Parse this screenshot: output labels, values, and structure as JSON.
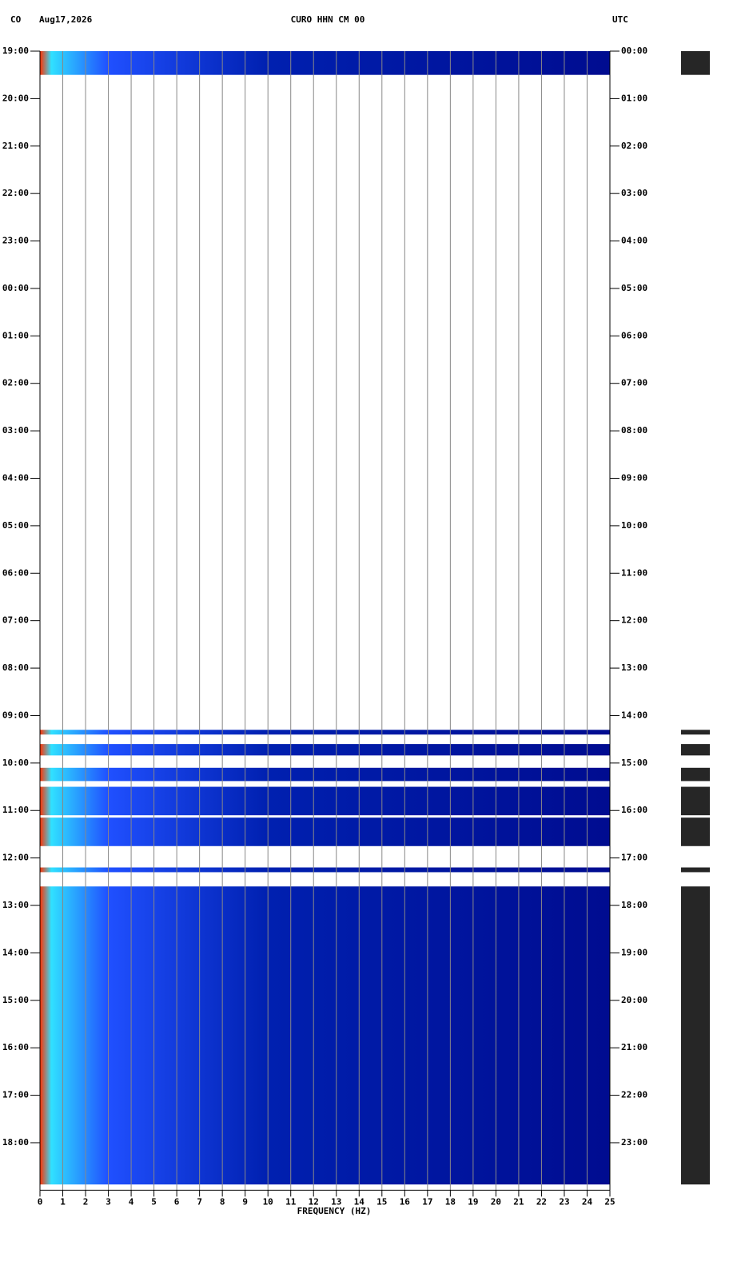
{
  "chart_data": {
    "type": "spectrogram",
    "network": "CO",
    "date": "Aug17,2026",
    "title": "CURO HHN CM 00",
    "timezone": "UTC",
    "xlabel": "FREQUENCY (HZ)",
    "xlim": [
      0,
      25
    ],
    "xticks": [
      0,
      1,
      2,
      3,
      4,
      5,
      6,
      7,
      8,
      9,
      10,
      11,
      12,
      13,
      14,
      15,
      16,
      17,
      18,
      19,
      20,
      21,
      22,
      23,
      24,
      25
    ],
    "ylim": [
      0,
      24
    ],
    "yticks": [
      {
        "value": 0,
        "label": "19:00"
      },
      {
        "value": 1,
        "label": "20:00"
      },
      {
        "value": 2,
        "label": "21:00"
      },
      {
        "value": 3,
        "label": "22:00"
      },
      {
        "value": 4,
        "label": "23:00"
      },
      {
        "value": 5,
        "label": "00:00"
      },
      {
        "value": 6,
        "label": "01:00"
      },
      {
        "value": 7,
        "label": "02:00"
      },
      {
        "value": 8,
        "label": "03:00"
      },
      {
        "value": 9,
        "label": "04:00"
      },
      {
        "value": 10,
        "label": "05:00"
      },
      {
        "value": 11,
        "label": "06:00"
      },
      {
        "value": 12,
        "label": "07:00"
      },
      {
        "value": 13,
        "label": "08:00"
      },
      {
        "value": 14,
        "label": "09:00"
      },
      {
        "value": 15,
        "label": "10:00"
      },
      {
        "value": 16,
        "label": "11:00"
      },
      {
        "value": 17,
        "label": "12:00"
      },
      {
        "value": 18,
        "label": "13:00"
      },
      {
        "value": 19,
        "label": "14:00"
      },
      {
        "value": 20,
        "label": "15:00"
      },
      {
        "value": 21,
        "label": "16:00"
      },
      {
        "value": 22,
        "label": "17:00"
      },
      {
        "value": 23,
        "label": "18:00"
      }
    ],
    "y2ticks": [
      {
        "value": 0,
        "label": "00:00"
      },
      {
        "value": 1,
        "label": "01:00"
      },
      {
        "value": 2,
        "label": "02:00"
      },
      {
        "value": 3,
        "label": "03:00"
      },
      {
        "value": 4,
        "label": "04:00"
      },
      {
        "value": 5,
        "label": "05:00"
      },
      {
        "value": 6,
        "label": "06:00"
      },
      {
        "value": 7,
        "label": "07:00"
      },
      {
        "value": 8,
        "label": "08:00"
      },
      {
        "value": 9,
        "label": "09:00"
      },
      {
        "value": 10,
        "label": "10:00"
      },
      {
        "value": 11,
        "label": "11:00"
      },
      {
        "value": 12,
        "label": "12:00"
      },
      {
        "value": 13,
        "label": "13:00"
      },
      {
        "value": 14,
        "label": "14:00"
      },
      {
        "value": 15,
        "label": "15:00"
      },
      {
        "value": 16,
        "label": "16:00"
      },
      {
        "value": 17,
        "label": "17:00"
      },
      {
        "value": 18,
        "label": "18:00"
      },
      {
        "value": 19,
        "label": "19:00"
      },
      {
        "value": 20,
        "label": "20:00"
      },
      {
        "value": 21,
        "label": "21:00"
      },
      {
        "value": 22,
        "label": "22:00"
      },
      {
        "value": 23,
        "label": "23:00"
      }
    ],
    "segments": [
      {
        "start": 0.0,
        "end": 0.5
      },
      {
        "start": 14.3,
        "end": 14.4
      },
      {
        "start": 14.6,
        "end": 14.84
      },
      {
        "start": 15.1,
        "end": 15.38
      },
      {
        "start": 15.5,
        "end": 16.1
      },
      {
        "start": 16.15,
        "end": 16.75
      },
      {
        "start": 17.2,
        "end": 17.3
      },
      {
        "start": 17.6,
        "end": 23.88
      }
    ],
    "grid": true
  }
}
